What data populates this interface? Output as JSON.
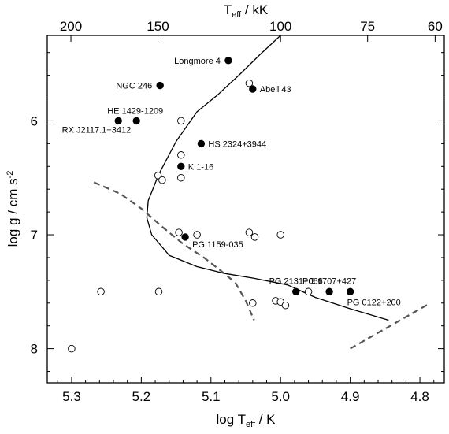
{
  "chart_data": {
    "type": "scatter",
    "xlabel": "log T",
    "xlabel_sub": "eff",
    "xlabel_unit": " / K",
    "ylabel": "log g / cm s",
    "ylabel_sup": "-2",
    "top_label": "T",
    "top_label_sub": "eff",
    "top_label_unit": " / kK",
    "xlim": [
      5.335,
      4.765
    ],
    "ylim": [
      8.3,
      5.25
    ],
    "x_axis_inverted": true,
    "y_axis_inverted": true,
    "grid": false,
    "legend": "none",
    "x_ticks": [
      5.3,
      5.2,
      5.1,
      5.0,
      4.9,
      4.8
    ],
    "x_tick_labels": [
      "5.3",
      "5.2",
      "5.1",
      "5.0",
      "4.9",
      "4.8"
    ],
    "y_ticks": [
      6,
      7,
      8
    ],
    "y_tick_labels": [
      "6",
      "7",
      "8"
    ],
    "top_ticks_kK": [
      200,
      150,
      100,
      75,
      60
    ],
    "top_tick_labels": [
      "200",
      "150",
      "100",
      "75",
      "60"
    ],
    "series": [
      {
        "marker": "filled-circle",
        "points": [
          {
            "x": 5.075,
            "y": 5.47,
            "label": "Longmore 4"
          },
          {
            "x": 5.173,
            "y": 5.69,
            "label": "NGC 246"
          },
          {
            "x": 5.04,
            "y": 5.72,
            "label": "Abell 43"
          },
          {
            "x": 5.207,
            "y": 6.0,
            "label": "HE 1429-1209"
          },
          {
            "x": 5.233,
            "y": 6.0,
            "label": "RX J2117.1+3412"
          },
          {
            "x": 5.114,
            "y": 6.2,
            "label": "HS 2324+3944"
          },
          {
            "x": 5.143,
            "y": 6.4,
            "label": "K 1-16"
          },
          {
            "x": 5.137,
            "y": 7.02,
            "label": "PG 1159-035"
          },
          {
            "x": 4.978,
            "y": 7.5,
            "label": "PG 2131+066"
          },
          {
            "x": 4.93,
            "y": 7.5,
            "label": "PG 1707+427"
          },
          {
            "x": 4.9,
            "y": 7.5,
            "label": "PG 0122+200"
          }
        ]
      },
      {
        "marker": "open-circle",
        "points": [
          {
            "x": 5.045,
            "y": 5.67
          },
          {
            "x": 5.143,
            "y": 6.0
          },
          {
            "x": 5.143,
            "y": 6.3
          },
          {
            "x": 5.176,
            "y": 6.48
          },
          {
            "x": 5.17,
            "y": 6.52
          },
          {
            "x": 5.143,
            "y": 6.5
          },
          {
            "x": 5.146,
            "y": 6.98
          },
          {
            "x": 5.12,
            "y": 7.0
          },
          {
            "x": 5.045,
            "y": 6.98
          },
          {
            "x": 5.037,
            "y": 7.02
          },
          {
            "x": 5.0,
            "y": 7.0
          },
          {
            "x": 4.96,
            "y": 7.5
          },
          {
            "x": 5.258,
            "y": 7.5
          },
          {
            "x": 5.175,
            "y": 7.5
          },
          {
            "x": 5.04,
            "y": 7.6
          },
          {
            "x": 5.007,
            "y": 7.58
          },
          {
            "x": 5.0,
            "y": 7.59
          },
          {
            "x": 4.993,
            "y": 7.62
          },
          {
            "x": 5.3,
            "y": 8.0
          }
        ]
      }
    ],
    "curves": [
      {
        "style": "solid",
        "points": [
          [
            5.0,
            5.25
          ],
          [
            5.03,
            5.42
          ],
          [
            5.06,
            5.6
          ],
          [
            5.09,
            5.77
          ],
          [
            5.12,
            5.92
          ],
          [
            5.15,
            6.18
          ],
          [
            5.175,
            6.47
          ],
          [
            5.19,
            6.7
          ],
          [
            5.192,
            6.85
          ],
          [
            5.185,
            7.0
          ],
          [
            5.16,
            7.18
          ],
          [
            5.12,
            7.28
          ],
          [
            5.08,
            7.34
          ],
          [
            5.04,
            7.38
          ],
          [
            4.99,
            7.44
          ],
          [
            4.95,
            7.55
          ],
          [
            4.9,
            7.65
          ],
          [
            4.845,
            7.75
          ]
        ]
      },
      {
        "style": "dashed",
        "points": [
          [
            5.268,
            6.54
          ],
          [
            5.23,
            6.64
          ],
          [
            5.2,
            6.77
          ],
          [
            5.17,
            6.93
          ],
          [
            5.14,
            7.08
          ],
          [
            5.11,
            7.2
          ],
          [
            5.085,
            7.32
          ],
          [
            5.065,
            7.42
          ],
          [
            5.05,
            7.58
          ],
          [
            5.038,
            7.75
          ]
        ]
      },
      {
        "style": "dashed",
        "points": [
          [
            4.9,
            8.0
          ],
          [
            4.785,
            7.6
          ]
        ]
      }
    ]
  }
}
